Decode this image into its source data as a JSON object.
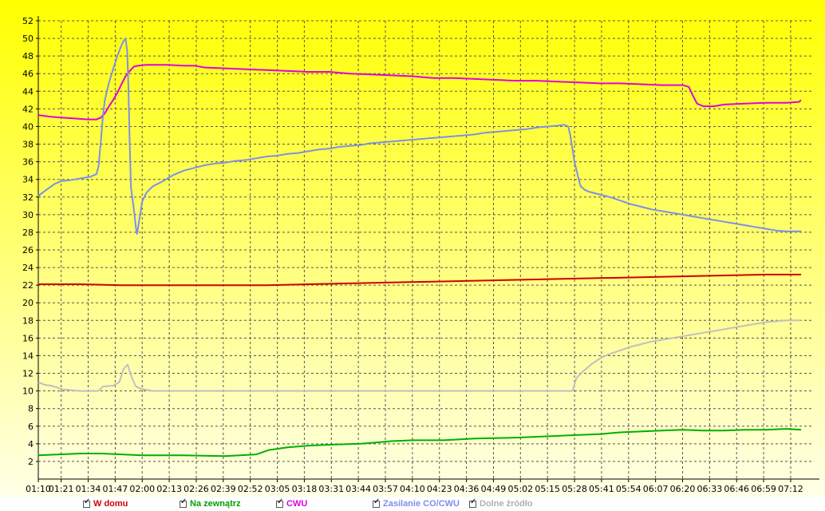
{
  "chart_data": {
    "type": "line",
    "ylim": [
      0,
      52
    ],
    "y_ticks": [
      2,
      4,
      6,
      8,
      10,
      12,
      14,
      16,
      18,
      20,
      22,
      24,
      26,
      28,
      30,
      32,
      34,
      36,
      38,
      40,
      42,
      44,
      46,
      48,
      50,
      52
    ],
    "x_tick_labels": [
      "01:10",
      "01:21",
      "01:34",
      "01:47",
      "02:00",
      "02:13",
      "02:26",
      "02:39",
      "02:52",
      "03:05",
      "03:18",
      "03:31",
      "03:44",
      "03:57",
      "04:10",
      "04:23",
      "04:36",
      "04:49",
      "05:02",
      "05:15",
      "05:28",
      "05:41",
      "05:54",
      "06:07",
      "06:20",
      "06:33",
      "06:46",
      "06:59",
      "07:12"
    ],
    "x_tick_minutes": [
      70,
      81,
      94,
      107,
      120,
      133,
      146,
      159,
      172,
      185,
      198,
      211,
      224,
      237,
      250,
      263,
      276,
      289,
      302,
      315,
      328,
      341,
      354,
      367,
      380,
      393,
      406,
      419,
      432
    ],
    "xlim_minutes": [
      70,
      442
    ],
    "grid": true,
    "background": {
      "top": "#ffff00",
      "bottom": "#ffffe8"
    },
    "series": [
      {
        "name": "Dolne źródło",
        "color": "#c0c0c0",
        "points": [
          [
            70,
            11
          ],
          [
            73,
            10.7
          ],
          [
            76,
            10.6
          ],
          [
            79,
            10.4
          ],
          [
            81,
            10.2
          ],
          [
            85,
            10.1
          ],
          [
            90,
            10
          ],
          [
            95,
            10
          ],
          [
            99,
            10
          ],
          [
            101,
            10.5
          ],
          [
            106,
            10.6
          ],
          [
            109,
            11
          ],
          [
            111,
            12.5
          ],
          [
            113,
            13
          ],
          [
            115,
            11.5
          ],
          [
            117,
            10.5
          ],
          [
            120,
            10.2
          ],
          [
            125,
            10
          ],
          [
            140,
            10
          ],
          [
            200,
            10
          ],
          [
            260,
            10
          ],
          [
            300,
            10
          ],
          [
            321,
            10
          ],
          [
            327,
            10
          ],
          [
            329,
            11.5
          ],
          [
            332,
            12.2
          ],
          [
            336,
            13
          ],
          [
            341,
            13.8
          ],
          [
            345,
            14.2
          ],
          [
            350,
            14.6
          ],
          [
            355,
            15
          ],
          [
            360,
            15.3
          ],
          [
            365,
            15.6
          ],
          [
            370,
            15.8
          ],
          [
            375,
            16
          ],
          [
            380,
            16.2
          ],
          [
            385,
            16.4
          ],
          [
            390,
            16.6
          ],
          [
            395,
            16.8
          ],
          [
            400,
            17
          ],
          [
            405,
            17.2
          ],
          [
            410,
            17.4
          ],
          [
            415,
            17.6
          ],
          [
            420,
            17.8
          ],
          [
            425,
            17.9
          ],
          [
            430,
            18
          ],
          [
            437,
            18
          ]
        ]
      },
      {
        "name": "Na zewnątrz",
        "color": "#00b000",
        "points": [
          [
            70,
            2.7
          ],
          [
            80,
            2.8
          ],
          [
            90,
            2.9
          ],
          [
            100,
            2.9
          ],
          [
            110,
            2.8
          ],
          [
            120,
            2.7
          ],
          [
            140,
            2.7
          ],
          [
            160,
            2.6
          ],
          [
            175,
            2.8
          ],
          [
            181,
            3.3
          ],
          [
            190,
            3.6
          ],
          [
            200,
            3.8
          ],
          [
            210,
            3.9
          ],
          [
            225,
            4
          ],
          [
            230,
            4.1
          ],
          [
            240,
            4.3
          ],
          [
            250,
            4.4
          ],
          [
            265,
            4.4
          ],
          [
            280,
            4.6
          ],
          [
            300,
            4.7
          ],
          [
            320,
            4.9
          ],
          [
            330,
            5
          ],
          [
            340,
            5.1
          ],
          [
            350,
            5.3
          ],
          [
            360,
            5.4
          ],
          [
            370,
            5.5
          ],
          [
            380,
            5.6
          ],
          [
            390,
            5.5
          ],
          [
            400,
            5.5
          ],
          [
            410,
            5.6
          ],
          [
            420,
            5.6
          ],
          [
            430,
            5.7
          ],
          [
            437,
            5.6
          ]
        ]
      },
      {
        "name": "W domu",
        "color": "#d00000",
        "points": [
          [
            70,
            22.1
          ],
          [
            90,
            22.1
          ],
          [
            110,
            22
          ],
          [
            130,
            22
          ],
          [
            160,
            22
          ],
          [
            180,
            22
          ],
          [
            200,
            22.1
          ],
          [
            220,
            22.2
          ],
          [
            240,
            22.3
          ],
          [
            260,
            22.4
          ],
          [
            280,
            22.5
          ],
          [
            300,
            22.6
          ],
          [
            320,
            22.7
          ],
          [
            340,
            22.8
          ],
          [
            360,
            22.9
          ],
          [
            380,
            23
          ],
          [
            400,
            23.1
          ],
          [
            420,
            23.2
          ],
          [
            437,
            23.2
          ]
        ]
      },
      {
        "name": "CWU",
        "color": "#e000e0",
        "points": [
          [
            70,
            41.3
          ],
          [
            76,
            41.1
          ],
          [
            82,
            41
          ],
          [
            88,
            40.9
          ],
          [
            94,
            40.8
          ],
          [
            96,
            40.8
          ],
          [
            98,
            40.8
          ],
          [
            100,
            41
          ],
          [
            102,
            41.5
          ],
          [
            104,
            42.3
          ],
          [
            106,
            43
          ],
          [
            108,
            43.8
          ],
          [
            110,
            44.8
          ],
          [
            112,
            45.7
          ],
          [
            114,
            46.3
          ],
          [
            116,
            46.8
          ],
          [
            118,
            46.9
          ],
          [
            122,
            47
          ],
          [
            132,
            47
          ],
          [
            140,
            46.9
          ],
          [
            145,
            46.9
          ],
          [
            150,
            46.7
          ],
          [
            160,
            46.6
          ],
          [
            170,
            46.5
          ],
          [
            180,
            46.4
          ],
          [
            190,
            46.3
          ],
          [
            200,
            46.2
          ],
          [
            210,
            46.2
          ],
          [
            220,
            46
          ],
          [
            230,
            45.9
          ],
          [
            240,
            45.8
          ],
          [
            250,
            45.7
          ],
          [
            260,
            45.5
          ],
          [
            270,
            45.5
          ],
          [
            280,
            45.4
          ],
          [
            290,
            45.3
          ],
          [
            300,
            45.2
          ],
          [
            310,
            45.2
          ],
          [
            320,
            45.1
          ],
          [
            330,
            45
          ],
          [
            340,
            44.9
          ],
          [
            350,
            44.9
          ],
          [
            360,
            44.8
          ],
          [
            370,
            44.7
          ],
          [
            380,
            44.7
          ],
          [
            383,
            44.5
          ],
          [
            385,
            43.5
          ],
          [
            387,
            42.6
          ],
          [
            390,
            42.3
          ],
          [
            395,
            42.3
          ],
          [
            400,
            42.5
          ],
          [
            410,
            42.6
          ],
          [
            420,
            42.7
          ],
          [
            430,
            42.7
          ],
          [
            436,
            42.8
          ],
          [
            437,
            43
          ]
        ]
      },
      {
        "name": "Zasilanie CO/CWU",
        "color": "#7f8fe8",
        "points": [
          [
            70,
            32.1
          ],
          [
            72,
            32.5
          ],
          [
            75,
            33
          ],
          [
            78,
            33.5
          ],
          [
            81,
            33.8
          ],
          [
            85,
            33.9
          ],
          [
            90,
            34.1
          ],
          [
            95,
            34.3
          ],
          [
            98,
            34.6
          ],
          [
            99,
            35.5
          ],
          [
            100,
            38
          ],
          [
            101,
            41
          ],
          [
            102,
            43
          ],
          [
            104,
            45
          ],
          [
            106,
            46.5
          ],
          [
            108,
            48
          ],
          [
            110,
            49.2
          ],
          [
            111,
            49.7
          ],
          [
            112,
            50
          ],
          [
            112.8,
            48.5
          ],
          [
            113.4,
            44
          ],
          [
            114,
            38
          ],
          [
            114.6,
            33
          ],
          [
            115.5,
            31.5
          ],
          [
            116.3,
            30
          ],
          [
            117,
            28.5
          ],
          [
            117.5,
            27.8
          ],
          [
            118,
            28.5
          ],
          [
            119,
            30
          ],
          [
            120,
            31.5
          ],
          [
            122,
            32.5
          ],
          [
            125,
            33.2
          ],
          [
            130,
            33.8
          ],
          [
            135,
            34.5
          ],
          [
            140,
            35
          ],
          [
            145,
            35.3
          ],
          [
            150,
            35.6
          ],
          [
            155,
            35.8
          ],
          [
            160,
            35.9
          ],
          [
            165,
            36.1
          ],
          [
            170,
            36.2
          ],
          [
            175,
            36.4
          ],
          [
            180,
            36.6
          ],
          [
            185,
            36.7
          ],
          [
            190,
            36.9
          ],
          [
            195,
            37
          ],
          [
            200,
            37.2
          ],
          [
            205,
            37.4
          ],
          [
            210,
            37.5
          ],
          [
            215,
            37.7
          ],
          [
            220,
            37.8
          ],
          [
            225,
            37.9
          ],
          [
            230,
            38.1
          ],
          [
            235,
            38.2
          ],
          [
            240,
            38.3
          ],
          [
            245,
            38.4
          ],
          [
            250,
            38.5
          ],
          [
            255,
            38.6
          ],
          [
            260,
            38.7
          ],
          [
            265,
            38.8
          ],
          [
            270,
            38.9
          ],
          [
            275,
            39
          ],
          [
            280,
            39.1
          ],
          [
            285,
            39.3
          ],
          [
            290,
            39.4
          ],
          [
            295,
            39.5
          ],
          [
            300,
            39.6
          ],
          [
            305,
            39.7
          ],
          [
            310,
            39.9
          ],
          [
            315,
            40
          ],
          [
            320,
            40.1
          ],
          [
            323,
            40.2
          ],
          [
            325,
            40
          ],
          [
            326,
            39
          ],
          [
            327,
            37.5
          ],
          [
            328,
            36
          ],
          [
            329,
            35
          ],
          [
            330,
            34
          ],
          [
            331,
            33.2
          ],
          [
            333,
            32.8
          ],
          [
            335,
            32.6
          ],
          [
            340,
            32.3
          ],
          [
            345,
            32
          ],
          [
            350,
            31.6
          ],
          [
            355,
            31.2
          ],
          [
            360,
            30.9
          ],
          [
            365,
            30.6
          ],
          [
            370,
            30.4
          ],
          [
            375,
            30.2
          ],
          [
            380,
            30
          ],
          [
            385,
            29.8
          ],
          [
            390,
            29.6
          ],
          [
            395,
            29.4
          ],
          [
            400,
            29.2
          ],
          [
            405,
            29
          ],
          [
            410,
            28.8
          ],
          [
            415,
            28.6
          ],
          [
            420,
            28.4
          ],
          [
            425,
            28.2
          ],
          [
            430,
            28.1
          ],
          [
            437,
            28.1
          ]
        ]
      }
    ],
    "legend": [
      {
        "label": "W domu",
        "color": "#d00000"
      },
      {
        "label": "Na zewnątrz",
        "color": "#00a000"
      },
      {
        "label": "CWU",
        "color": "#e000e0"
      },
      {
        "label": "Zasilanie CO/CWU",
        "color": "#7f8fe8"
      },
      {
        "label": "Dolne źródło",
        "color": "#b0b0b0"
      }
    ]
  }
}
